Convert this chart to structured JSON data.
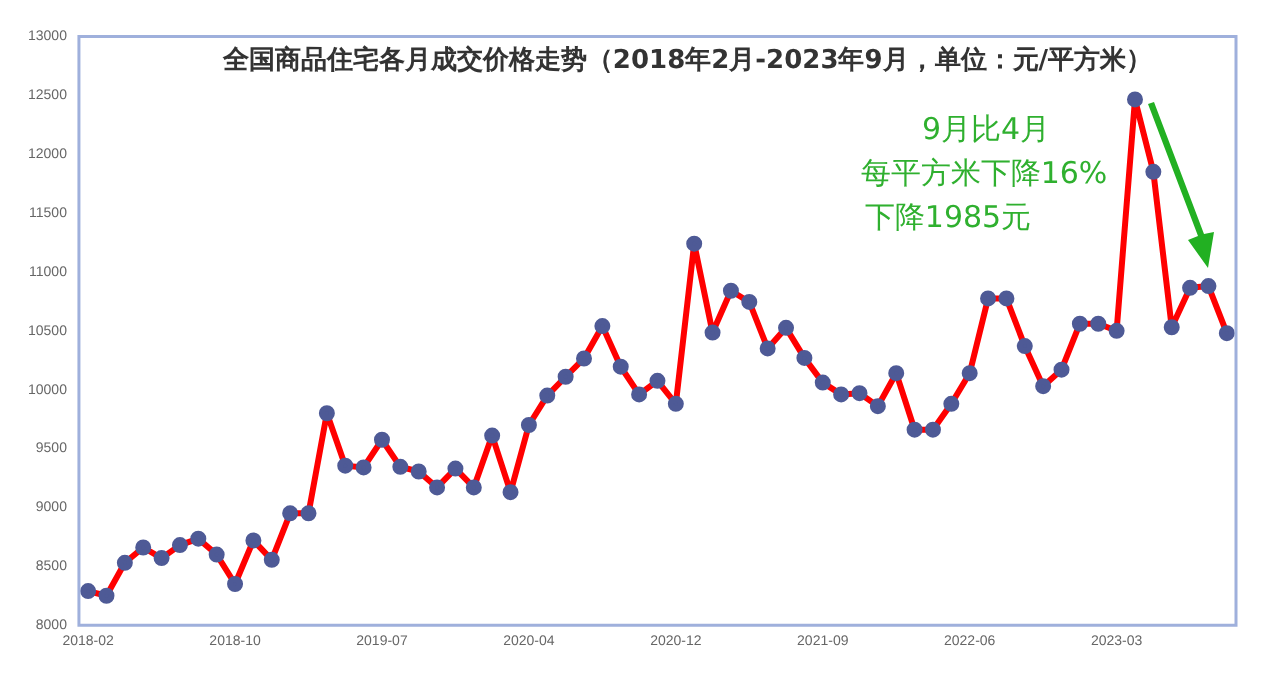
{
  "chart_data": {
    "type": "line",
    "title": "全国商品住宅各月成交价格走势（2018年2月-2023年9月，单位：元/平方米）",
    "categories": [
      "2018-02",
      null,
      null,
      null,
      null,
      null,
      null,
      null,
      "2018-10",
      null,
      null,
      null,
      null,
      null,
      null,
      null,
      "2019-07",
      null,
      null,
      null,
      null,
      null,
      null,
      null,
      "2020-04",
      null,
      null,
      null,
      null,
      null,
      null,
      null,
      "2020-12",
      null,
      null,
      null,
      null,
      null,
      null,
      null,
      "2021-09",
      null,
      null,
      null,
      null,
      null,
      null,
      null,
      "2022-06",
      null,
      null,
      null,
      null,
      null,
      null,
      null,
      "2023-03",
      null,
      null,
      null,
      null,
      null,
      null
    ],
    "series": [
      {
        "color": "#ff0000",
        "values": [
          8290,
          8250,
          8530,
          8660,
          8570,
          8680,
          8735,
          8600,
          8350,
          8720,
          8555,
          8950,
          8950,
          9800,
          9355,
          9340,
          9575,
          9345,
          9305,
          9170,
          9330,
          9170,
          9610,
          9130,
          9700,
          9950,
          10110,
          10265,
          10540,
          10195,
          9960,
          10075,
          9880,
          11240,
          10485,
          10840,
          10745,
          10350,
          10525,
          10270,
          10060,
          9960,
          9970,
          9860,
          10140,
          9660,
          9660,
          9880,
          10140,
          10775,
          10775,
          10370,
          10030,
          10170,
          10560,
          10560,
          10500,
          12465,
          11850,
          10530,
          10865,
          10880,
          10480
        ]
      }
    ],
    "ylim": [
      8000,
      13000
    ],
    "yticks": [
      8000,
      8500,
      9000,
      9500,
      10000,
      10500,
      11000,
      11500,
      12000,
      12500,
      13000
    ],
    "grid": false,
    "legend": false,
    "marker": "circle",
    "line_style": "solid",
    "annotations": [
      "9月比4月",
      "每平方米下降16%",
      "下降1985元"
    ]
  }
}
